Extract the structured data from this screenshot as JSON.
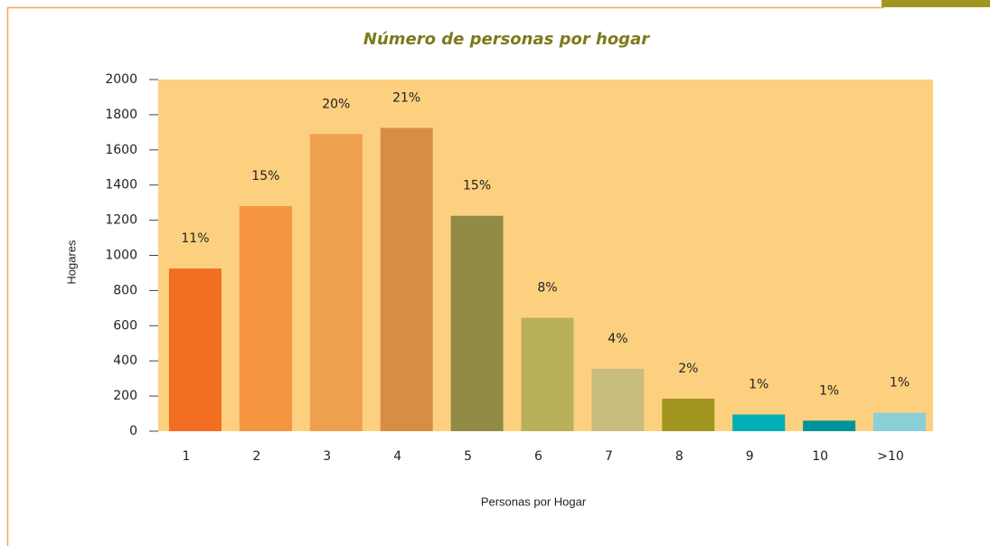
{
  "chart_data": {
    "type": "bar",
    "title": "Número de personas por hogar",
    "x_label": "Personas por Hogar",
    "y_label": "Hogares",
    "categories": [
      "1",
      "2",
      "3",
      "4",
      "5",
      "6",
      "7",
      "8",
      "9",
      "10",
      ">10"
    ],
    "values": [
      925,
      1280,
      1690,
      1725,
      1225,
      645,
      355,
      185,
      95,
      60,
      105
    ],
    "value_labels": [
      "11%",
      "15%",
      "20%",
      "21%",
      "15%",
      "8%",
      "4%",
      "2%",
      "1%",
      "1%",
      "1%"
    ],
    "colors": [
      "#f26e22",
      "#f5953f",
      "#eda04e",
      "#d68e45",
      "#928b48",
      "#bab05a",
      "#c8bd7c",
      "#a0961f",
      "#00aeb8",
      "#009399",
      "#8acfd6"
    ],
    "ylim": [
      0,
      2000
    ],
    "yticks": [
      0,
      200,
      400,
      600,
      800,
      1000,
      1200,
      1400,
      1600,
      1800,
      2000
    ]
  }
}
